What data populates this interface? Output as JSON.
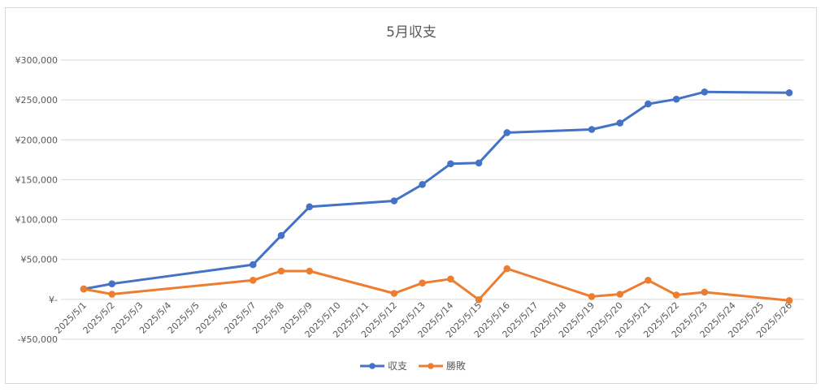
{
  "chart_data": {
    "type": "line",
    "title": "5月収支",
    "y_tick_labels": [
      "¥300,000",
      "¥250,000",
      "¥200,000",
      "¥150,000",
      "¥100,000",
      "¥50,000",
      "¥-",
      "-¥50,000"
    ],
    "y_tick_values": [
      300000,
      250000,
      200000,
      150000,
      100000,
      50000,
      0,
      -50000
    ],
    "ylim": [
      -50000,
      300000
    ],
    "grid": true,
    "legend_position": "bottom",
    "categories": [
      "2025/5/1",
      "2025/5/2",
      "2025/5/3",
      "2025/5/4",
      "2025/5/5",
      "2025/5/6",
      "2025/5/7",
      "2025/5/8",
      "2025/5/9",
      "2025/5/10",
      "2025/5/11",
      "2025/5/12",
      "2025/5/13",
      "2025/5/14",
      "2025/5/15",
      "2025/5/16",
      "2025/5/17",
      "2025/5/18",
      "2025/5/19",
      "2025/5/20",
      "2025/5/21",
      "2025/5/22",
      "2025/5/23",
      "2025/5/24",
      "2025/5/25",
      "2025/5/26"
    ],
    "series": [
      {
        "name": "収支",
        "color": "#4472c4",
        "points": [
          {
            "x": "2025/5/1",
            "y": 13000
          },
          {
            "x": "2025/5/2",
            "y": 19500
          },
          {
            "x": "2025/5/7",
            "y": 43500
          },
          {
            "x": "2025/5/8",
            "y": 80000
          },
          {
            "x": "2025/5/9",
            "y": 116000
          },
          {
            "x": "2025/5/12",
            "y": 123500
          },
          {
            "x": "2025/5/13",
            "y": 144000
          },
          {
            "x": "2025/5/14",
            "y": 170000
          },
          {
            "x": "2025/5/15",
            "y": 171000
          },
          {
            "x": "2025/5/16",
            "y": 209000
          },
          {
            "x": "2025/5/19",
            "y": 213000
          },
          {
            "x": "2025/5/20",
            "y": 221000
          },
          {
            "x": "2025/5/21",
            "y": 245000
          },
          {
            "x": "2025/5/22",
            "y": 251000
          },
          {
            "x": "2025/5/23",
            "y": 260000
          },
          {
            "x": "2025/5/26",
            "y": 259000
          }
        ]
      },
      {
        "name": "勝敗",
        "color": "#ed7d31",
        "points": [
          {
            "x": "2025/5/1",
            "y": 13000
          },
          {
            "x": "2025/5/2",
            "y": 6500
          },
          {
            "x": "2025/5/7",
            "y": 24000
          },
          {
            "x": "2025/5/8",
            "y": 35500
          },
          {
            "x": "2025/5/9",
            "y": 35500
          },
          {
            "x": "2025/5/12",
            "y": 7500
          },
          {
            "x": "2025/5/13",
            "y": 20500
          },
          {
            "x": "2025/5/14",
            "y": 25500
          },
          {
            "x": "2025/5/15",
            "y": -500
          },
          {
            "x": "2025/5/16",
            "y": 38500
          },
          {
            "x": "2025/5/19",
            "y": 3500
          },
          {
            "x": "2025/5/20",
            "y": 6500
          },
          {
            "x": "2025/5/21",
            "y": 24000
          },
          {
            "x": "2025/5/22",
            "y": 5500
          },
          {
            "x": "2025/5/23",
            "y": 9000
          },
          {
            "x": "2025/5/26",
            "y": -1500
          }
        ]
      }
    ]
  }
}
